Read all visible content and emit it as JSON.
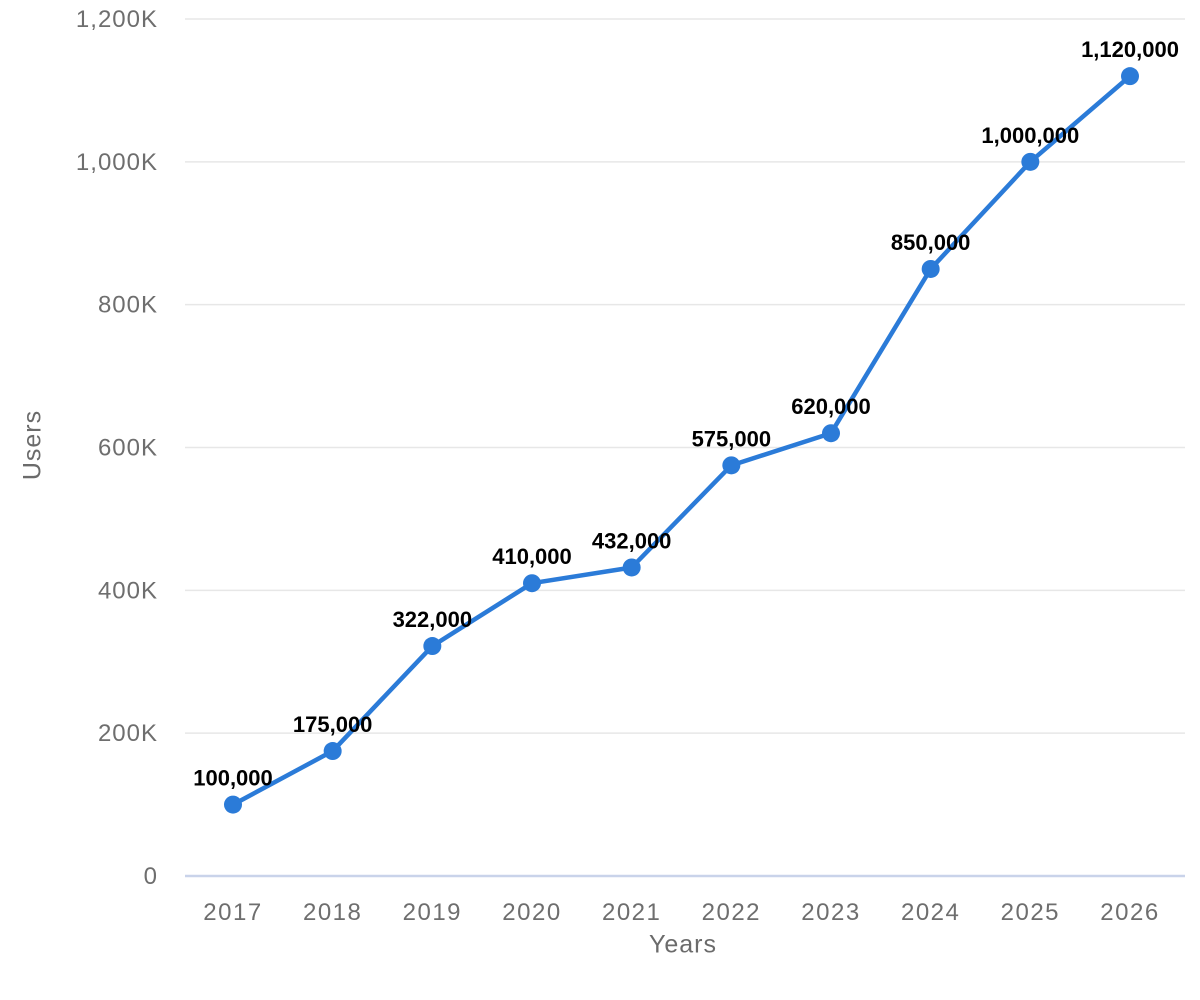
{
  "chart_data": {
    "type": "line",
    "title": "",
    "xlabel": "Years",
    "ylabel": "Users",
    "categories": [
      "2017",
      "2018",
      "2019",
      "2020",
      "2021",
      "2022",
      "2023",
      "2024",
      "2025",
      "2026"
    ],
    "series": [
      {
        "name": "Users",
        "values": [
          100000,
          175000,
          322000,
          410000,
          432000,
          575000,
          620000,
          850000,
          1000000,
          1120000
        ],
        "labels": [
          "100,000",
          "175,000",
          "322,000",
          "410,000",
          "432,000",
          "575,000",
          "620,000",
          "850,000",
          "1,000,000",
          "1,120,000"
        ]
      }
    ],
    "ylim": [
      0,
      1200000
    ],
    "ytick_values": [
      0,
      200000,
      400000,
      600000,
      800000,
      1000000,
      1200000
    ],
    "ytick_labels": [
      "0",
      "200K",
      "400K",
      "600K",
      "800K",
      "1,000K",
      "1,200K"
    ],
    "grid": true,
    "legend": "none",
    "colors": {
      "line": "#2b7bd8",
      "marker": "#2b7bd8",
      "grid_line": "#e7e7e7",
      "axis_line": "#c9d3ea",
      "tick_text": "#6e6e6e",
      "axis_title_text": "#6b6b6b",
      "data_label_text": "#000000",
      "background": "#ffffff"
    }
  }
}
